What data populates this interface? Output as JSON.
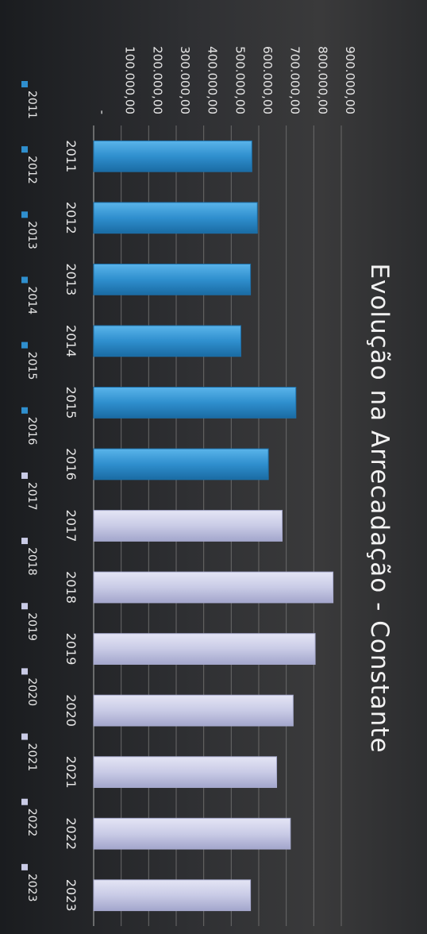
{
  "chart_data": {
    "type": "bar",
    "title": "Evolução na Arrecadação - Constante",
    "categories": [
      "2011",
      "2012",
      "2013",
      "2014",
      "2015",
      "2016",
      "2017",
      "2018",
      "2019",
      "2020",
      "2021",
      "2022",
      "2023"
    ],
    "values": [
      575000,
      595000,
      570000,
      535000,
      735000,
      635000,
      685000,
      870000,
      805000,
      725000,
      665000,
      715000,
      570000
    ],
    "y_ticks": [
      "-",
      "100.000,00",
      "200.000,00",
      "300.000,00",
      "400.000,00",
      "500.000,00",
      "600.000,00",
      "700.000,00",
      "800.000,00",
      "900.000,00"
    ],
    "ylim": [
      0,
      900000
    ],
    "grid": true,
    "legend": {
      "placement": "bottom",
      "entries": [
        "2011",
        "2012",
        "2013",
        "2014",
        "2015",
        "2016",
        "2017",
        "2018",
        "2019",
        "2020",
        "2021",
        "2022",
        "2023"
      ]
    },
    "colors": {
      "group_a": "#2f8fce",
      "group_a_dark": "#1d6fa8",
      "group_b": "#c9cbe6",
      "group_b_dark": "#a8abcf",
      "grid": "#6a6a6a"
    },
    "group_a_categories": [
      "2011",
      "2012",
      "2013",
      "2014",
      "2015",
      "2016"
    ]
  }
}
